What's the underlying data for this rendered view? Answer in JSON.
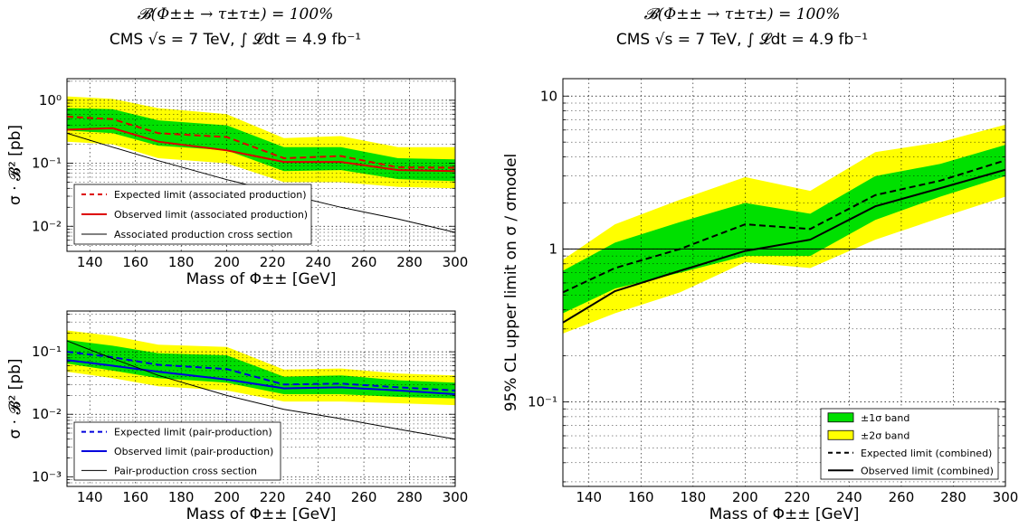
{
  "chart_data": [
    {
      "type": "line",
      "title_line1": "𝓑(Φ±± → τ±τ±) = 100%",
      "title_line2": "CMS √s = 7 TeV, ∫ 𝓛dt = 4.9 fb⁻¹",
      "xlabel": "Mass of Φ±± [GeV]",
      "ylabel": "σ · 𝓑² [pb]",
      "xlim": [
        130,
        300
      ],
      "ylim": [
        0.004,
        2.2
      ],
      "yscale": "log",
      "xticks": [
        140,
        160,
        180,
        200,
        220,
        240,
        260,
        280,
        300
      ],
      "yticks": [
        {
          "v": 1,
          "label": "10⁰"
        },
        {
          "v": 0.1,
          "label": "10⁻¹"
        },
        {
          "v": 0.01,
          "label": "10⁻²"
        }
      ],
      "grid": true,
      "legend_position": "lower-left",
      "x": [
        130,
        150,
        170,
        200,
        225,
        250,
        275,
        300
      ],
      "band2_low": [
        0.22,
        0.2,
        0.12,
        0.1,
        0.05,
        0.05,
        0.042,
        0.04
      ],
      "band2_high": [
        1.15,
        1.05,
        0.75,
        0.6,
        0.25,
        0.27,
        0.18,
        0.18
      ],
      "band1_low": [
        0.33,
        0.3,
        0.19,
        0.16,
        0.075,
        0.078,
        0.056,
        0.052
      ],
      "band1_high": [
        0.75,
        0.72,
        0.48,
        0.4,
        0.18,
        0.18,
        0.12,
        0.115
      ],
      "series": [
        {
          "name": "Expected limit (associated production)",
          "style": "dashed",
          "color": "#dd0000",
          "values": [
            0.55,
            0.5,
            0.3,
            0.26,
            0.12,
            0.13,
            0.086,
            0.085
          ]
        },
        {
          "name": "Observed limit (associated production)",
          "style": "solid",
          "color": "#dd0000",
          "values": [
            0.34,
            0.36,
            0.22,
            0.16,
            0.105,
            0.105,
            0.078,
            0.075
          ]
        },
        {
          "name": "Associated production cross section",
          "style": "solid",
          "color": "#000000",
          "values": [
            0.3,
            0.18,
            0.11,
            0.055,
            0.033,
            0.02,
            0.013,
            0.008
          ]
        }
      ]
    },
    {
      "type": "line",
      "xlabel": "Mass of Φ±± [GeV]",
      "ylabel": "σ · 𝓑² [pb]",
      "xlim": [
        130,
        300
      ],
      "ylim": [
        0.0007,
        0.45
      ],
      "yscale": "log",
      "xticks": [
        140,
        160,
        180,
        200,
        220,
        240,
        260,
        280,
        300
      ],
      "yticks": [
        {
          "v": 0.1,
          "label": "10⁻¹"
        },
        {
          "v": 0.01,
          "label": "10⁻²"
        },
        {
          "v": 0.001,
          "label": "10⁻³"
        }
      ],
      "grid": true,
      "legend_position": "lower-left",
      "x": [
        130,
        150,
        170,
        200,
        225,
        250,
        275,
        300
      ],
      "band2_low": [
        0.048,
        0.038,
        0.028,
        0.024,
        0.016,
        0.016,
        0.015,
        0.014
      ],
      "band2_high": [
        0.22,
        0.18,
        0.13,
        0.12,
        0.052,
        0.054,
        0.045,
        0.042
      ],
      "band1_low": [
        0.065,
        0.05,
        0.038,
        0.032,
        0.021,
        0.021,
        0.019,
        0.018
      ],
      "band1_high": [
        0.155,
        0.125,
        0.095,
        0.088,
        0.04,
        0.042,
        0.035,
        0.032
      ],
      "series": [
        {
          "name": "Expected limit (pair-production)",
          "style": "dashed",
          "color": "#0000dd",
          "values": [
            0.1,
            0.082,
            0.062,
            0.053,
            0.03,
            0.031,
            0.027,
            0.024
          ]
        },
        {
          "name": "Observed limit (pair-production)",
          "style": "solid",
          "color": "#0000dd",
          "values": [
            0.074,
            0.06,
            0.048,
            0.036,
            0.026,
            0.027,
            0.024,
            0.021
          ]
        },
        {
          "name": "Pair-production cross section",
          "style": "solid",
          "color": "#000000",
          "values": [
            0.15,
            0.078,
            0.042,
            0.02,
            0.012,
            0.0085,
            0.0058,
            0.004
          ]
        }
      ]
    },
    {
      "type": "line",
      "title_line1": "𝓑(Φ±± → τ±τ±) = 100%",
      "title_line2": "CMS √s = 7 TeV, ∫ 𝓛dt = 4.9 fb⁻¹",
      "xlabel": "Mass of Φ±± [GeV]",
      "ylabel": "95% CL upper limit on σ / σmodel",
      "xlim": [
        130,
        300
      ],
      "ylim": [
        0.028,
        13
      ],
      "yscale": "log",
      "xticks": [
        140,
        160,
        180,
        200,
        220,
        240,
        260,
        280,
        300
      ],
      "yticks": [
        {
          "v": 10,
          "label": "10"
        },
        {
          "v": 1,
          "label": "1"
        },
        {
          "v": 0.1,
          "label": "10⁻¹"
        }
      ],
      "grid": true,
      "reference_line": 1,
      "legend_position": "lower-right",
      "band1_label": "±1σ band",
      "band2_label": "±2σ band",
      "x": [
        130,
        150,
        175,
        200,
        225,
        250,
        275,
        300
      ],
      "band2_low": [
        0.28,
        0.38,
        0.52,
        0.82,
        0.75,
        1.15,
        1.6,
        2.2
      ],
      "band2_high": [
        0.85,
        1.45,
        2.1,
        2.95,
        2.4,
        4.3,
        5.0,
        6.5
      ],
      "band1_low": [
        0.38,
        0.55,
        0.7,
        0.9,
        0.9,
        1.55,
        2.2,
        3.0
      ],
      "band1_high": [
        0.72,
        1.1,
        1.5,
        2.0,
        1.7,
        3.0,
        3.6,
        4.8
      ],
      "series": [
        {
          "name": "Expected limit (combined)",
          "style": "dashed",
          "color": "#000000",
          "values": [
            0.52,
            0.75,
            1.0,
            1.45,
            1.35,
            2.25,
            2.8,
            3.8
          ]
        },
        {
          "name": "Observed limit (combined)",
          "style": "solid",
          "color": "#000000",
          "values": [
            0.33,
            0.53,
            0.72,
            0.97,
            1.15,
            1.9,
            2.5,
            3.3
          ]
        }
      ]
    }
  ]
}
